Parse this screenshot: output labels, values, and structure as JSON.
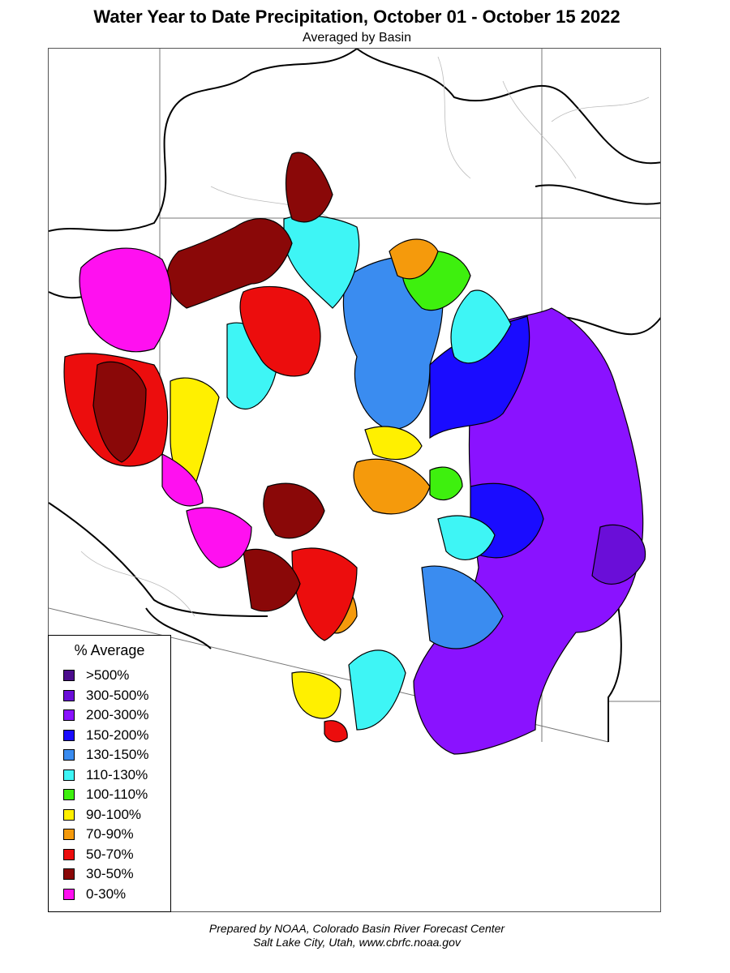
{
  "header": {
    "title": "Water Year to Date Precipitation, October 01  - October 15 2022",
    "subtitle": "Averaged by Basin"
  },
  "legend": {
    "title": "% Average",
    "items": [
      {
        "label": ">500%",
        "color": "#4b0c8c"
      },
      {
        "label": "300-500%",
        "color": "#6a0ed8"
      },
      {
        "label": "200-300%",
        "color": "#8a12ff"
      },
      {
        "label": "150-200%",
        "color": "#1a0cff"
      },
      {
        "label": "130-150%",
        "color": "#3a8cf0"
      },
      {
        "label": "110-130%",
        "color": "#3ef5f5"
      },
      {
        "label": "100-110%",
        "color": "#3ef00e"
      },
      {
        "label": "90-100%",
        "color": "#fff000"
      },
      {
        "label": "70-90%",
        "color": "#f59a0c"
      },
      {
        "label": "50-70%",
        "color": "#ec0d0d"
      },
      {
        "label": "30-50%",
        "color": "#8a0808"
      },
      {
        "label": "0-30%",
        "color": "#ff10f0"
      }
    ]
  },
  "footer": {
    "line1": "Prepared by NOAA, Colorado Basin River Forecast Center",
    "line2": "Salt Lake City, Utah, www.cbrfc.noaa.gov"
  }
}
